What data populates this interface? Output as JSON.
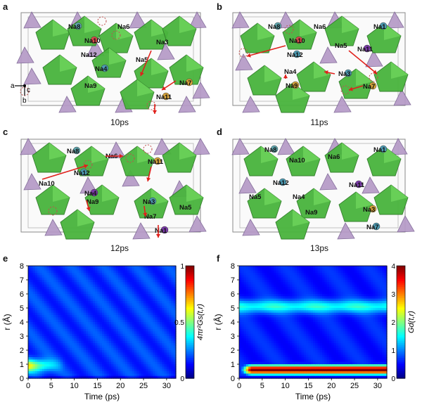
{
  "figure": {
    "panels": [
      {
        "id": "a",
        "time": "10ps",
        "ions": [
          "Na8",
          "Na6",
          "Na10",
          "Na3",
          "Na12",
          "Na5",
          "Na4",
          "Na7",
          "Na9",
          "Na11"
        ],
        "axes": [
          "a",
          "c",
          "b"
        ]
      },
      {
        "id": "b",
        "time": "11ps",
        "ions": [
          "Na8",
          "Na6",
          "Na1",
          "Na10",
          "Na11",
          "Na12",
          "Na5",
          "Na4",
          "Na3",
          "Na9",
          "Na7"
        ]
      },
      {
        "id": "c",
        "time": "12ps",
        "ions": [
          "Na8",
          "Na6",
          "Na11",
          "Na10",
          "Na12",
          "Na4",
          "Na9",
          "Na3",
          "Na5",
          "Na7",
          "Na1"
        ]
      },
      {
        "id": "d",
        "time": "13ps",
        "ions": [
          "Na8",
          "Na10",
          "Na6",
          "Na1",
          "Na12",
          "Na11",
          "Na5",
          "Na4",
          "Na3",
          "Na9",
          "Na7"
        ]
      }
    ]
  },
  "chart_data": [
    {
      "type": "heatmap",
      "panel": "e",
      "xlabel": "Time (ps)",
      "ylabel": "r (Å)",
      "xticks": [
        "0",
        "5",
        "10",
        "15",
        "20",
        "25",
        "30"
      ],
      "yticks": [
        "0",
        "1",
        "2",
        "3",
        "4",
        "5",
        "6",
        "7",
        "8"
      ],
      "xlim": [
        0,
        32
      ],
      "ylim": [
        0,
        8
      ],
      "colorbar_label": "4πr²Gs(t,r)",
      "colorbar_ticks": [
        "0",
        "0.5",
        "1"
      ],
      "colorbar_range": [
        0,
        1
      ],
      "colormap": "jet",
      "description_of_features": {
        "background_level": 0.18,
        "peak_center_r": 0.9,
        "peak_decays_by_time": 8
      }
    },
    {
      "type": "heatmap",
      "panel": "f",
      "xlabel": "Time (ps)",
      "ylabel": "r (Å)",
      "xticks": [
        "0",
        "5",
        "10",
        "15",
        "20",
        "25",
        "30"
      ],
      "yticks": [
        "0",
        "1",
        "2",
        "3",
        "4",
        "5",
        "6",
        "7",
        "8"
      ],
      "xlim": [
        0,
        32
      ],
      "ylim": [
        0,
        8
      ],
      "colorbar_label": "Gd(t,r)",
      "colorbar_ticks": [
        "0",
        "1",
        "2",
        "3",
        "4"
      ],
      "colorbar_range": [
        0,
        4
      ],
      "colormap": "jet",
      "description_of_features": {
        "background_level": 0.6,
        "band_center_r": 5.1,
        "band_level": 1.6,
        "core_center_r": 0.6,
        "core_level": 4
      }
    }
  ]
}
